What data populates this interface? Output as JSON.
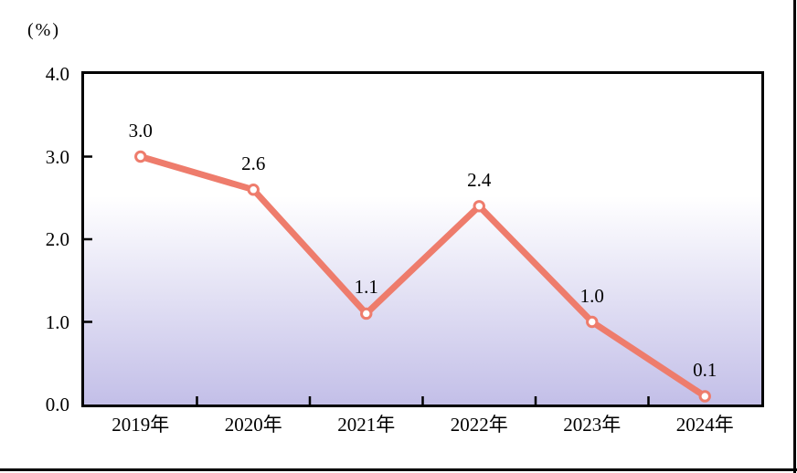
{
  "figure": {
    "frame_border_color": "#000000",
    "background": "#ffffff"
  },
  "chart_data": {
    "type": "line",
    "title": "",
    "unit_label": "(%)",
    "categories": [
      "2019年",
      "2020年",
      "2021年",
      "2022年",
      "2023年",
      "2024年"
    ],
    "values": [
      3.0,
      2.6,
      1.1,
      2.4,
      1.0,
      0.1
    ],
    "point_labels": [
      "3.0",
      "2.6",
      "1.1",
      "2.4",
      "1.0",
      "0.1"
    ],
    "ylim": [
      0.0,
      4.0
    ],
    "y_tick_values": [
      0,
      1,
      2,
      3,
      4
    ],
    "y_tick_labels": [
      "0.0",
      "1.0",
      "2.0",
      "3.0",
      "4.0"
    ],
    "grid": "off",
    "legend": "none",
    "colors": {
      "line": "#ee7c6c",
      "marker_fill": "#ffffff",
      "marker_stroke": "#ee7c6c",
      "axis": "#000000",
      "text": "#000000",
      "plot_gradient_top": "#ffffff",
      "plot_gradient_bottom": "#c3bfe8"
    }
  }
}
